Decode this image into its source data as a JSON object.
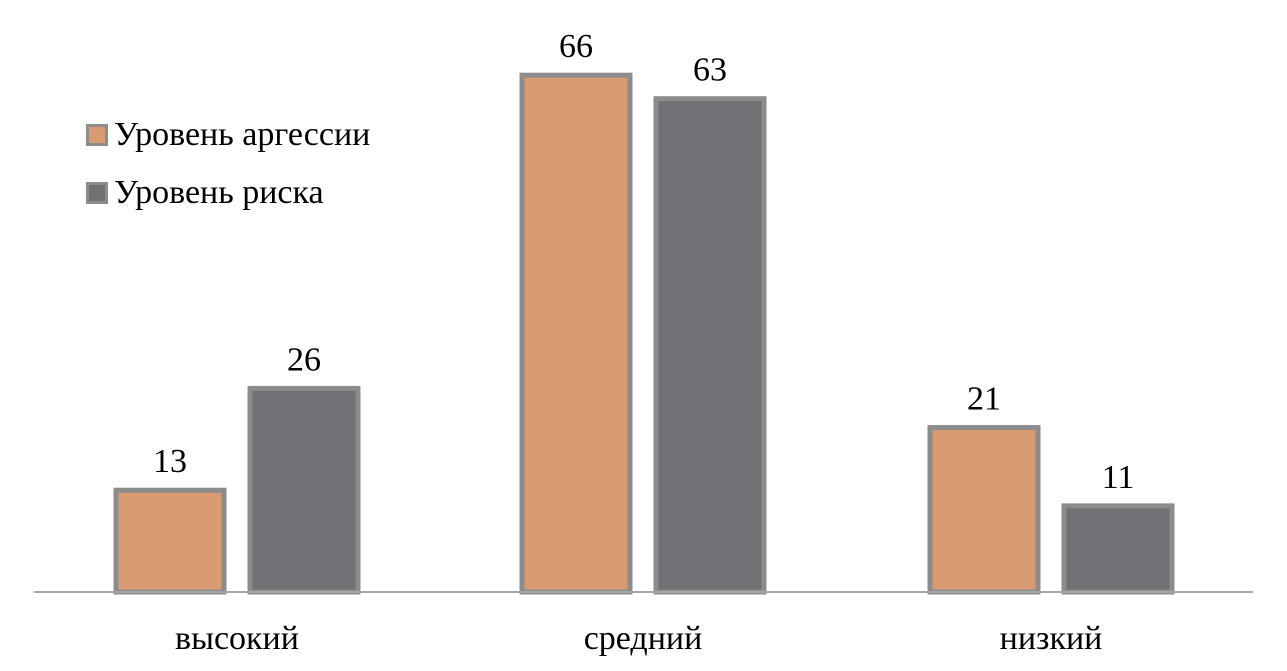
{
  "chart_data": {
    "type": "bar",
    "categories": [
      "высокий",
      "средний",
      "низкий"
    ],
    "series": [
      {
        "name": "Уровень аргессии",
        "values": [
          13,
          66,
          21
        ],
        "color": "#d99c72"
      },
      {
        "name": "Уровень риска",
        "values": [
          26,
          63,
          11
        ],
        "color": "#717074"
      }
    ],
    "bar_border_color": "#8c8c8c",
    "axis_color": "#a6a6a6",
    "ylim": [
      0,
      70
    ],
    "grid": false,
    "legend_position": "top-left",
    "data_labels": true
  }
}
